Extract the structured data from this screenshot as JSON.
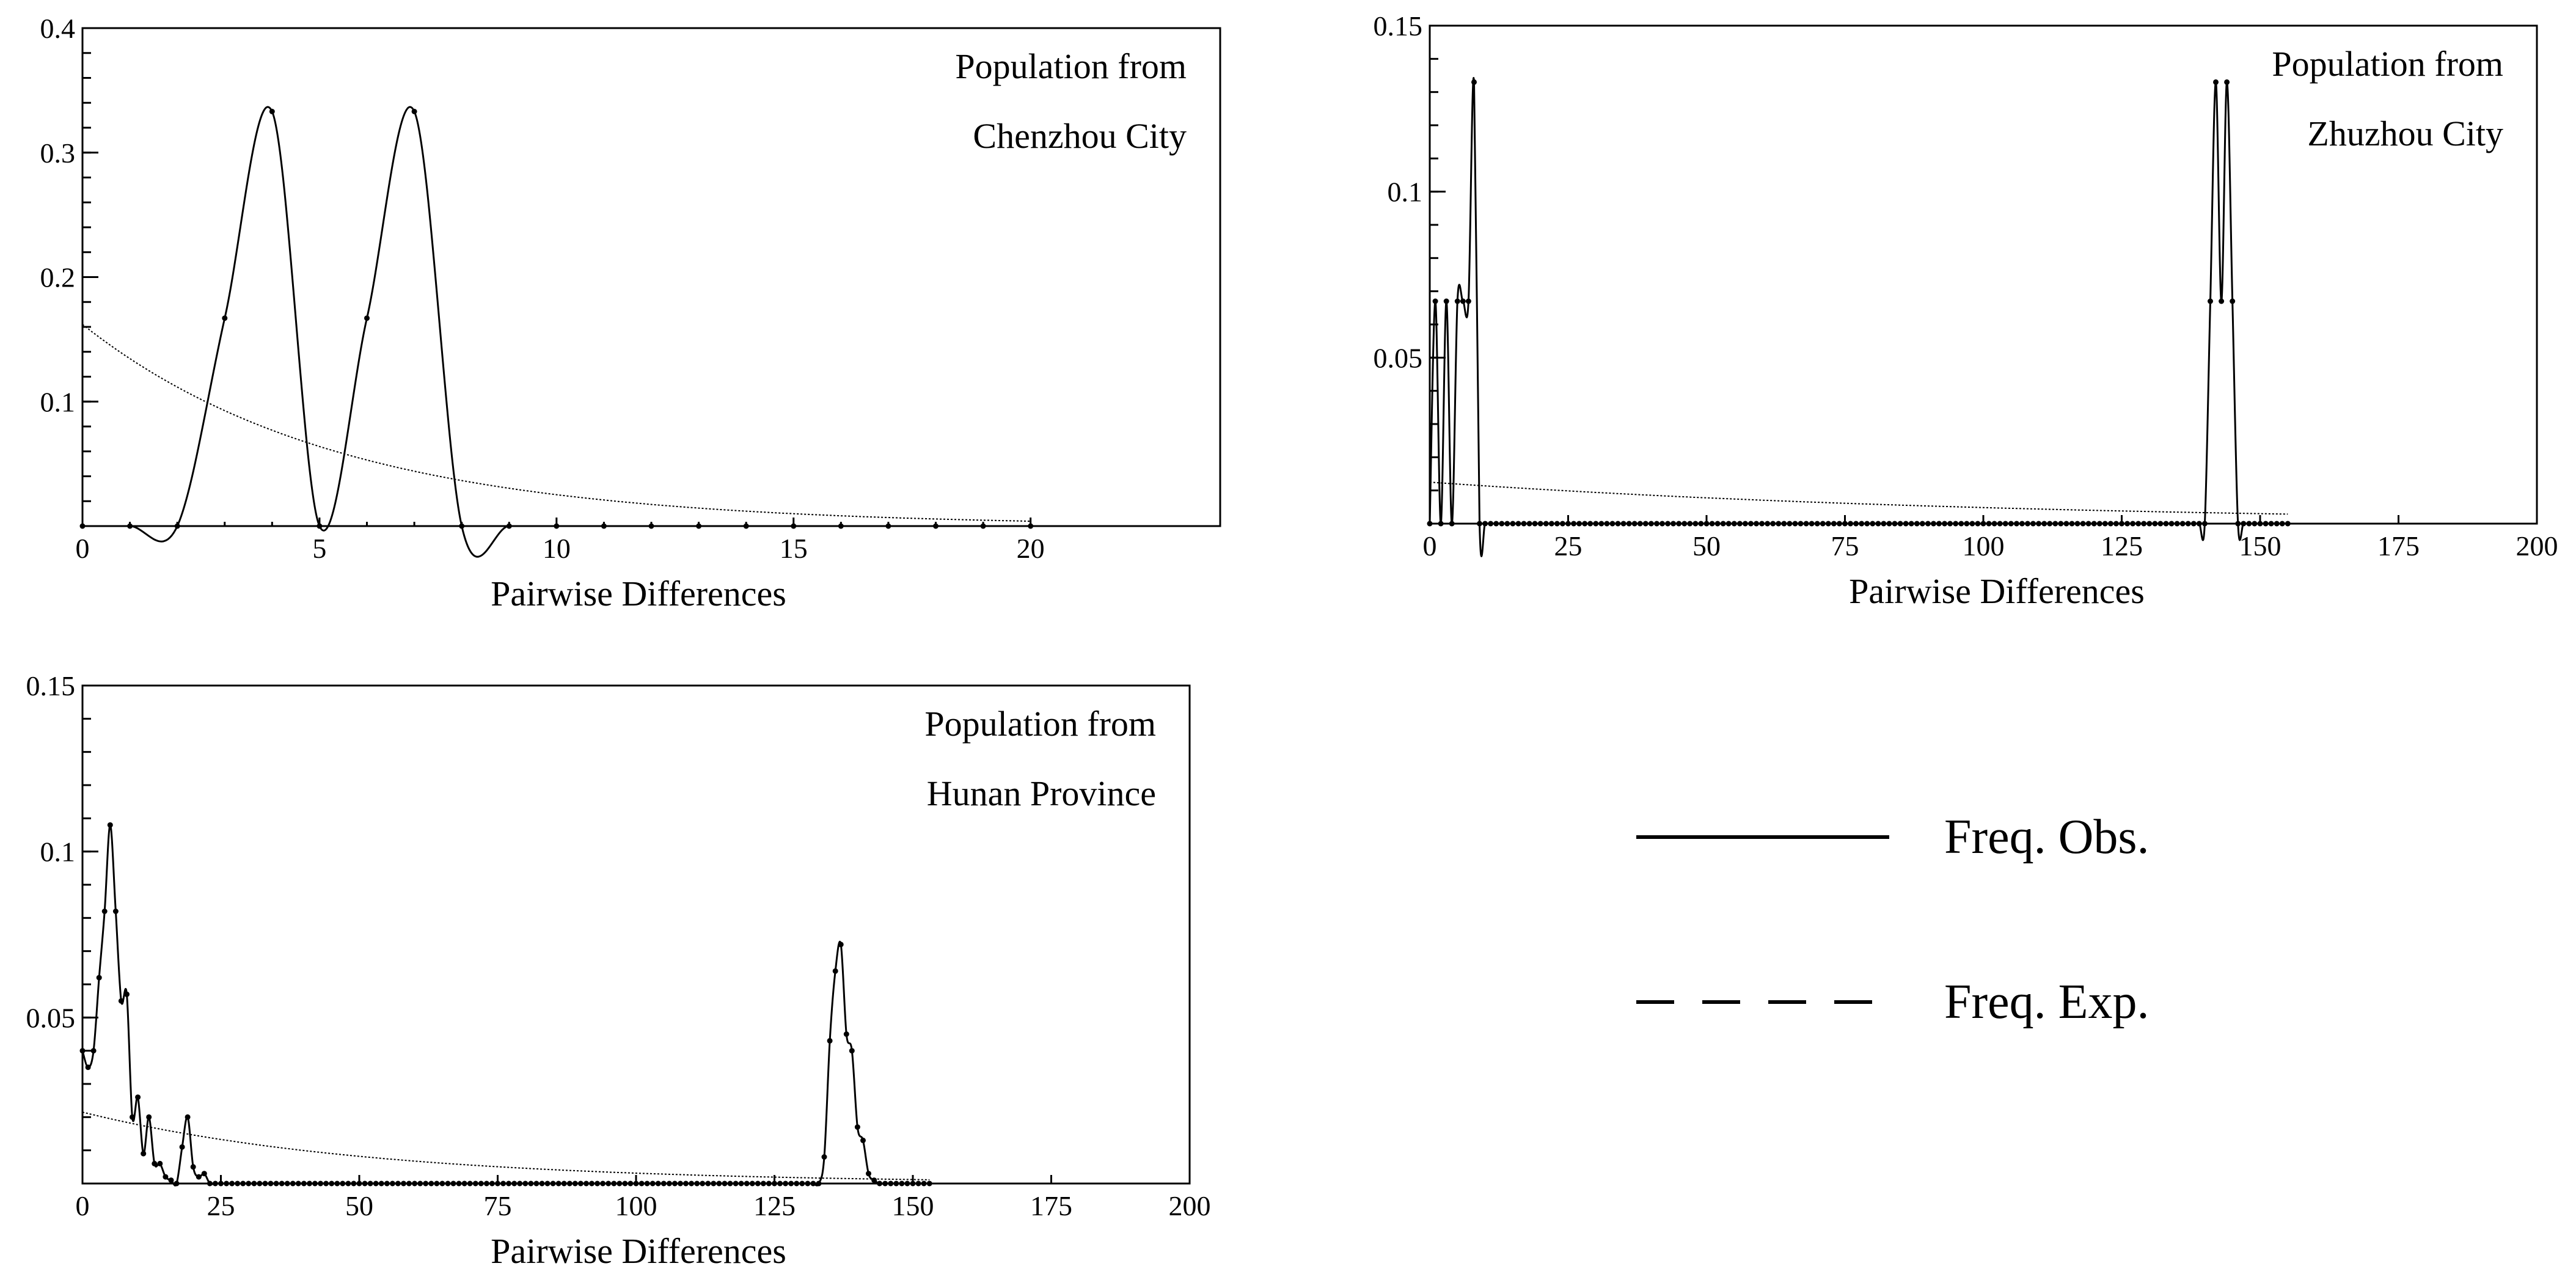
{
  "chart_data": [
    {
      "type": "line",
      "title": "Population from Chenzhou City",
      "annotation": [
        "Population from",
        "Chenzhou City"
      ],
      "xlabel": "Pairwise Differences",
      "ylabel": "",
      "xlim": [
        0,
        24
      ],
      "ylim": [
        0,
        0.4
      ],
      "x_ticks": [
        0,
        5,
        10,
        15,
        20
      ],
      "x_minor_ticks": [
        1,
        2,
        3,
        4,
        6,
        7,
        8,
        9,
        11,
        12,
        13,
        14,
        16,
        17,
        18,
        19
      ],
      "y_ticks": [
        0.1,
        0.2,
        0.3,
        0.4
      ],
      "y_tick_labels": [
        "0.1",
        "0.2",
        "0.3",
        "0.4"
      ],
      "y_minor_step": 0.02,
      "series": [
        {
          "name": "Freq. Obs.",
          "style": "solid",
          "x": [
            0,
            1,
            2,
            3,
            4,
            5,
            6,
            7,
            8,
            9,
            10,
            11,
            12,
            13,
            14,
            15,
            16,
            17,
            18,
            19,
            20
          ],
          "values": [
            0,
            0,
            0,
            0.167,
            0.333,
            0,
            0.167,
            0.333,
            0,
            0,
            0,
            0,
            0,
            0,
            0,
            0,
            0,
            0,
            0,
            0,
            0
          ]
        },
        {
          "name": "Freq. Exp.",
          "style": "dashed",
          "x_range": [
            0,
            20
          ],
          "model": {
            "type": "exponential",
            "start": 0.162,
            "rate": 0.186
          }
        }
      ]
    },
    {
      "type": "line",
      "title": "Population from Zhuzhou City",
      "annotation": [
        "Population from",
        "Zhuzhou City"
      ],
      "xlabel": "Pairwise Differences",
      "ylabel": "",
      "xlim": [
        0,
        200
      ],
      "ylim": [
        0,
        0.15
      ],
      "x_ticks": [
        0,
        25,
        50,
        75,
        100,
        125,
        150,
        175,
        200
      ],
      "x_minor_ticks": [],
      "y_ticks": [
        0.05,
        0.1,
        0.15
      ],
      "y_tick_labels": [
        "0.05",
        "0.1",
        "0.15"
      ],
      "y_minor_step": 0.01,
      "series": [
        {
          "name": "Freq. Obs.",
          "style": "solid",
          "x_range": [
            0,
            155
          ],
          "nonzero_x": [
            1,
            3,
            5,
            6,
            7,
            8,
            141,
            142,
            143,
            144,
            145
          ],
          "nonzero_values": [
            0.067,
            0.067,
            0.067,
            0.067,
            0.067,
            0.133,
            0.067,
            0.133,
            0.067,
            0.133,
            0.067
          ]
        },
        {
          "name": "Freq. Exp.",
          "style": "dashed",
          "x_range": [
            0,
            155
          ],
          "model": {
            "type": "exponential",
            "start": 0.0125,
            "rate": 0.0095
          }
        }
      ]
    },
    {
      "type": "line",
      "title": "Population from Hunan Province",
      "annotation": [
        "Population from",
        "Hunan Province"
      ],
      "xlabel": "Pairwise Differences",
      "ylabel": "",
      "xlim": [
        0,
        200
      ],
      "ylim": [
        0,
        0.15
      ],
      "x_ticks": [
        0,
        25,
        50,
        75,
        100,
        125,
        150,
        175,
        200
      ],
      "x_minor_ticks": [],
      "y_ticks": [
        0.05,
        0.1,
        0.15
      ],
      "y_tick_labels": [
        "0.05",
        "0.1",
        "0.15"
      ],
      "y_minor_step": 0.01,
      "series": [
        {
          "name": "Freq. Obs.",
          "style": "solid",
          "x_range": [
            0,
            153
          ],
          "nonzero_x": [
            0,
            1,
            2,
            3,
            4,
            5,
            6,
            7,
            8,
            9,
            10,
            11,
            12,
            13,
            14,
            15,
            16,
            18,
            19,
            20,
            21,
            22,
            134,
            135,
            136,
            137,
            138,
            139,
            140,
            141,
            142,
            143
          ],
          "nonzero_values": [
            0.04,
            0.035,
            0.04,
            0.062,
            0.082,
            0.108,
            0.082,
            0.055,
            0.057,
            0.02,
            0.026,
            0.009,
            0.02,
            0.006,
            0.006,
            0.002,
            0.001,
            0.011,
            0.02,
            0.005,
            0.002,
            0.003,
            0.008,
            0.043,
            0.064,
            0.072,
            0.045,
            0.04,
            0.017,
            0.013,
            0.003,
            0.001
          ]
        },
        {
          "name": "Freq. Exp.",
          "style": "dashed",
          "x_range": [
            0,
            153
          ],
          "model": {
            "type": "exponential",
            "start": 0.0215,
            "rate": 0.0193
          }
        }
      ]
    }
  ],
  "legend": {
    "items": [
      {
        "label": "Freq. Obs.",
        "style": "solid"
      },
      {
        "label": "Freq. Exp.",
        "style": "dashed"
      }
    ]
  }
}
